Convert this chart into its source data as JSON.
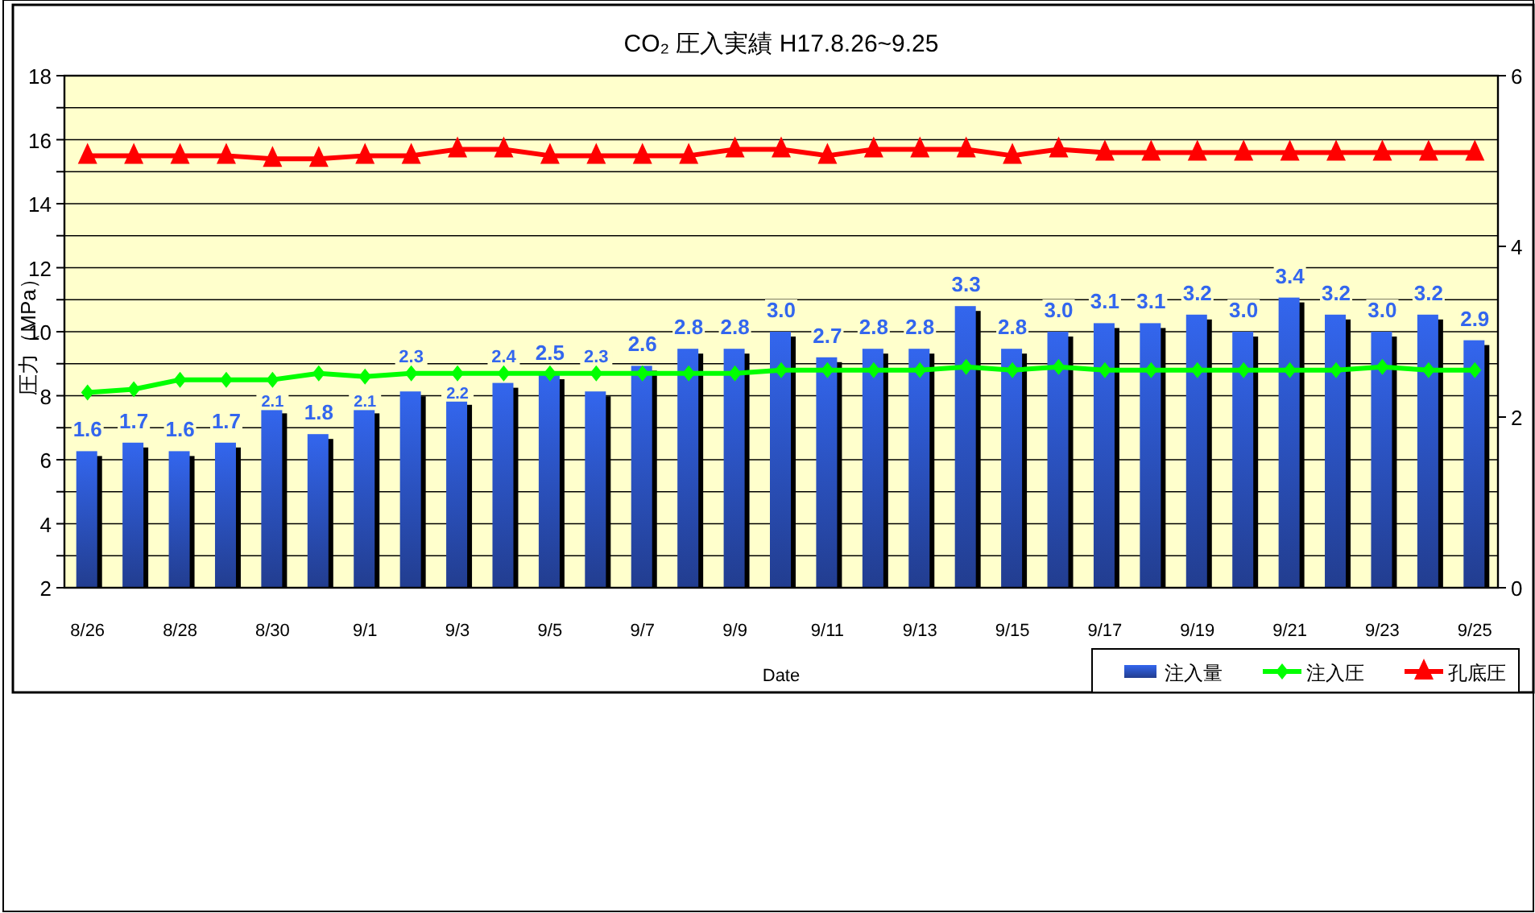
{
  "chart_data": {
    "type": "bar",
    "title": "CO₂ 圧入実績 H17.8.26~9.25",
    "xlabel": "Date",
    "ylabel": "圧力（MPa）",
    "categories": [
      "8/26",
      null,
      "8/28",
      null,
      "8/30",
      null,
      "9/1",
      null,
      "9/3",
      null,
      "9/5",
      null,
      "9/7",
      null,
      "9/9",
      null,
      "9/11",
      null,
      "9/13",
      null,
      "9/15",
      null,
      "9/17",
      null,
      "9/19",
      null,
      "9/21",
      null,
      "9/23",
      null,
      "9/25"
    ],
    "series": [
      {
        "name": "注入量",
        "axis": "y2",
        "color": "#3366ee",
        "values": [
          1.6,
          1.7,
          1.6,
          1.7,
          2.1,
          1.8,
          2.1,
          2.3,
          2.2,
          2.4,
          2.5,
          2.3,
          2.6,
          2.8,
          2.8,
          3.0,
          2.7,
          2.8,
          2.8,
          3.3,
          2.8,
          3.0,
          3.1,
          3.1,
          3.2,
          3.0,
          3.4,
          3.2,
          3.0,
          3.2,
          2.9
        ],
        "value_labels": [
          "1.6",
          "1.7",
          "1.6",
          "1.7",
          "2.1",
          "1.8",
          "2.1",
          "2.3",
          "2.2",
          "2.4",
          "2.5",
          "2.3",
          "2.6",
          "2.8",
          "2.8",
          "3.0",
          "2.7",
          "2.8",
          "2.8",
          "3.3",
          "2.8",
          "3.0",
          "3.1",
          "3.1",
          "3.2",
          "3.0",
          "3.4",
          "3.2",
          "3.0",
          "3.2",
          "2.9"
        ]
      },
      {
        "name": "注入圧",
        "type": "line",
        "color": "#00ff00",
        "marker": "diamond",
        "values": [
          8.1,
          8.2,
          8.5,
          8.5,
          8.5,
          8.7,
          8.6,
          8.7,
          8.7,
          8.7,
          8.7,
          8.7,
          8.7,
          8.7,
          8.7,
          8.8,
          8.8,
          8.8,
          8.8,
          8.9,
          8.8,
          8.9,
          8.8,
          8.8,
          8.8,
          8.8,
          8.8,
          8.8,
          8.9,
          8.8,
          8.8
        ]
      },
      {
        "name": "孔底圧",
        "type": "line",
        "color": "#ff0000",
        "marker": "triangle",
        "values": [
          15.5,
          15.5,
          15.5,
          15.5,
          15.4,
          15.4,
          15.5,
          15.5,
          15.7,
          15.7,
          15.5,
          15.5,
          15.5,
          15.5,
          15.7,
          15.7,
          15.5,
          15.7,
          15.7,
          15.7,
          15.5,
          15.7,
          15.6,
          15.6,
          15.6,
          15.6,
          15.6,
          15.6,
          15.6,
          15.6,
          15.6
        ]
      }
    ],
    "ylim": [
      2,
      18
    ],
    "yticks": [
      2,
      {
        "value": 3,
        "label": null
      },
      4,
      {
        "value": 5,
        "label": null
      },
      6,
      {
        "value": 7,
        "label": null
      },
      8,
      {
        "value": 9,
        "label": null
      },
      10,
      {
        "value": 11,
        "label": null
      },
      12,
      {
        "value": 13,
        "label": null
      },
      14,
      {
        "value": 15,
        "label": null
      },
      16,
      {
        "value": 17,
        "label": null
      },
      18
    ],
    "y2lim": [
      0,
      6
    ],
    "y2ticks": [
      0,
      2,
      4,
      6
    ],
    "grid": "y",
    "legend": "bottom right"
  }
}
